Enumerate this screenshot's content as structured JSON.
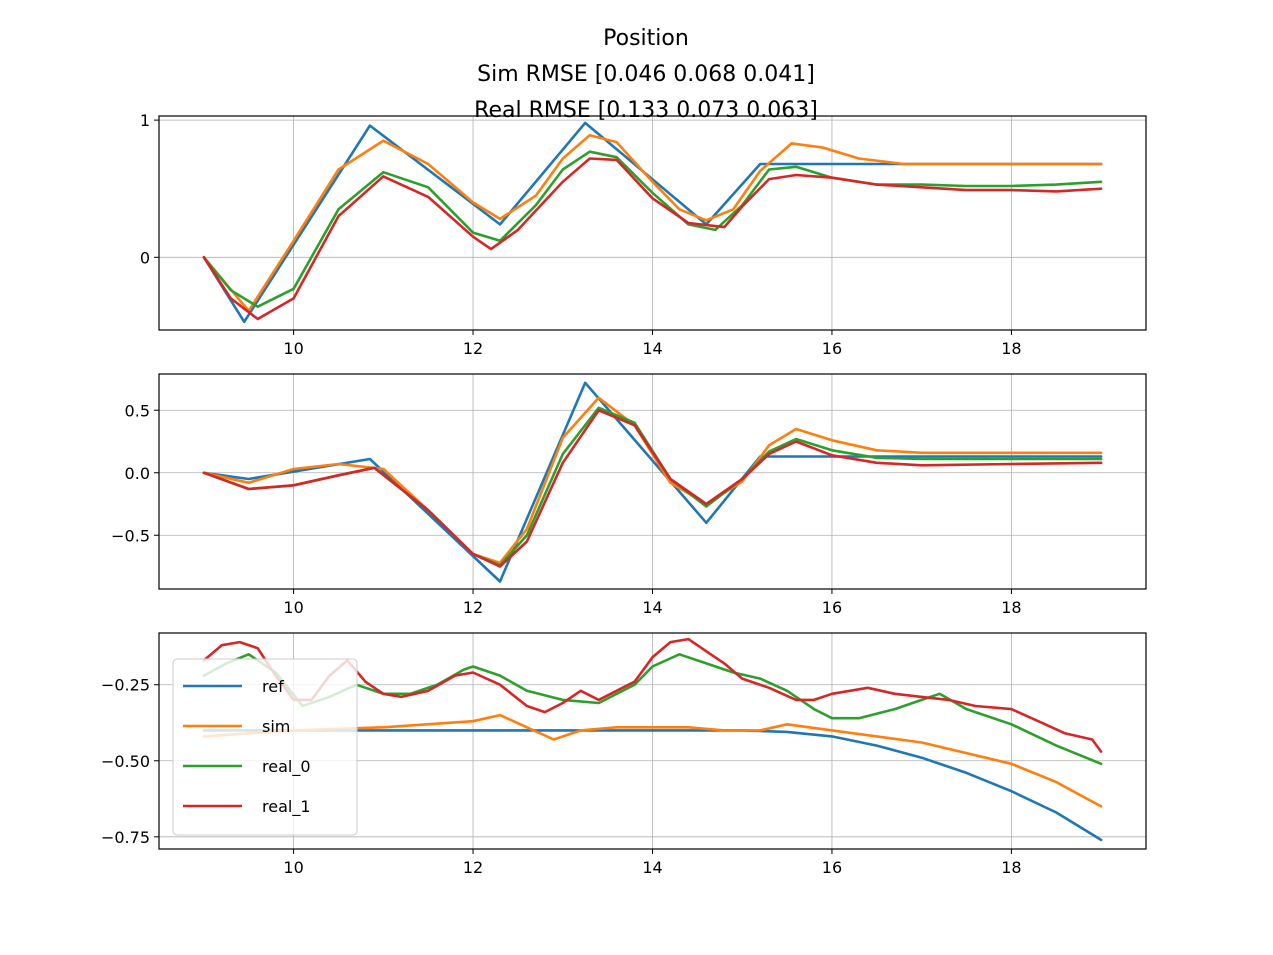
{
  "chart_data": {
    "type": "line",
    "title": [
      "Position",
      "Sim RMSE [0.046 0.068 0.041]",
      "Real RMSE [0.133 0.073 0.063]"
    ],
    "legend": {
      "location": "lower-left",
      "entries": [
        "ref",
        "sim",
        "real_0",
        "real_1"
      ]
    },
    "series_colors": {
      "ref": "#1f77b4",
      "sim": "#ff7f0e",
      "real_0": "#2ca02c",
      "real_1": "#d62728"
    },
    "grid": true,
    "subplots": [
      {
        "xlim": [
          8.5,
          19.5
        ],
        "ylim": [
          -0.53,
          1.03
        ],
        "xticks": [
          10,
          12,
          14,
          16,
          18
        ],
        "yticks": [
          0,
          1
        ],
        "ytick_labels": [
          "0",
          "1"
        ],
        "series": [
          {
            "name": "ref",
            "x": [
              9.0,
              9.45,
              10.85,
              12.3,
              13.25,
              14.6,
              15.2,
              19.0
            ],
            "y": [
              0.0,
              -0.47,
              0.96,
              0.24,
              0.98,
              0.24,
              0.68,
              0.68
            ]
          },
          {
            "name": "sim",
            "x": [
              9.0,
              9.5,
              10.0,
              10.5,
              11.0,
              11.5,
              12.0,
              12.3,
              12.7,
              13.0,
              13.3,
              13.6,
              14.0,
              14.3,
              14.6,
              14.9,
              15.2,
              15.55,
              15.9,
              16.3,
              16.8,
              17.5,
              19.0
            ],
            "y": [
              0.0,
              -0.39,
              0.12,
              0.64,
              0.85,
              0.68,
              0.4,
              0.28,
              0.45,
              0.72,
              0.89,
              0.84,
              0.55,
              0.35,
              0.27,
              0.35,
              0.63,
              0.83,
              0.8,
              0.72,
              0.68,
              0.68,
              0.68
            ]
          },
          {
            "name": "real_0",
            "x": [
              9.0,
              9.3,
              9.6,
              10.0,
              10.5,
              11.0,
              11.5,
              12.0,
              12.3,
              12.7,
              13.0,
              13.3,
              13.6,
              14.0,
              14.4,
              14.7,
              15.0,
              15.3,
              15.6,
              16.0,
              16.5,
              17.0,
              17.5,
              18.0,
              18.5,
              19.0
            ],
            "y": [
              0.0,
              -0.24,
              -0.36,
              -0.23,
              0.35,
              0.62,
              0.51,
              0.18,
              0.12,
              0.38,
              0.64,
              0.77,
              0.73,
              0.47,
              0.24,
              0.2,
              0.38,
              0.64,
              0.66,
              0.58,
              0.53,
              0.53,
              0.52,
              0.52,
              0.53,
              0.55
            ]
          },
          {
            "name": "real_1",
            "x": [
              9.0,
              9.3,
              9.6,
              10.0,
              10.5,
              11.0,
              11.5,
              12.0,
              12.2,
              12.5,
              13.0,
              13.3,
              13.6,
              14.0,
              14.4,
              14.8,
              15.0,
              15.3,
              15.6,
              16.0,
              16.5,
              17.0,
              17.5,
              18.0,
              18.5,
              19.0
            ],
            "y": [
              0.0,
              -0.3,
              -0.45,
              -0.3,
              0.3,
              0.59,
              0.44,
              0.15,
              0.06,
              0.2,
              0.55,
              0.72,
              0.71,
              0.43,
              0.25,
              0.22,
              0.37,
              0.57,
              0.6,
              0.58,
              0.53,
              0.51,
              0.49,
              0.49,
              0.48,
              0.5
            ]
          }
        ]
      },
      {
        "xlim": [
          8.5,
          19.5
        ],
        "ylim": [
          -0.93,
          0.79
        ],
        "xticks": [
          10,
          12,
          14,
          16,
          18
        ],
        "yticks": [
          0.5,
          0.0,
          -0.5
        ],
        "ytick_labels": [
          "0.5",
          "0.0",
          "−0.5"
        ],
        "series": [
          {
            "name": "ref",
            "x": [
              9.0,
              9.5,
              10.85,
              12.3,
              13.25,
              14.6,
              15.2,
              19.0
            ],
            "y": [
              0.0,
              -0.05,
              0.11,
              -0.87,
              0.72,
              -0.4,
              0.13,
              0.13
            ]
          },
          {
            "name": "sim",
            "x": [
              9.0,
              9.5,
              10.0,
              10.5,
              11.0,
              11.5,
              12.0,
              12.3,
              12.6,
              13.0,
              13.4,
              13.8,
              14.2,
              14.6,
              15.0,
              15.3,
              15.6,
              16.0,
              16.5,
              17.0,
              19.0
            ],
            "y": [
              0.0,
              -0.08,
              0.03,
              0.07,
              0.03,
              -0.3,
              -0.65,
              -0.72,
              -0.45,
              0.28,
              0.6,
              0.38,
              -0.08,
              -0.25,
              -0.07,
              0.22,
              0.35,
              0.26,
              0.18,
              0.16,
              0.16
            ]
          },
          {
            "name": "real_0",
            "x": [
              9.0,
              9.5,
              10.0,
              10.5,
              10.9,
              11.5,
              12.0,
              12.3,
              12.6,
              13.0,
              13.4,
              13.8,
              14.2,
              14.6,
              15.0,
              15.3,
              15.6,
              16.0,
              16.5,
              17.0,
              19.0
            ],
            "y": [
              0.0,
              -0.13,
              -0.1,
              -0.02,
              0.04,
              -0.3,
              -0.65,
              -0.74,
              -0.5,
              0.15,
              0.52,
              0.4,
              -0.05,
              -0.27,
              -0.05,
              0.17,
              0.27,
              0.18,
              0.12,
              0.11,
              0.11
            ]
          },
          {
            "name": "real_1",
            "x": [
              9.0,
              9.5,
              10.0,
              10.5,
              10.9,
              11.5,
              12.0,
              12.3,
              12.6,
              13.0,
              13.4,
              13.8,
              14.2,
              14.6,
              15.0,
              15.3,
              15.6,
              16.0,
              16.5,
              17.0,
              18.0,
              19.0
            ],
            "y": [
              0.0,
              -0.13,
              -0.1,
              -0.02,
              0.04,
              -0.3,
              -0.65,
              -0.75,
              -0.55,
              0.08,
              0.5,
              0.38,
              -0.05,
              -0.25,
              -0.05,
              0.15,
              0.25,
              0.14,
              0.08,
              0.06,
              0.07,
              0.08
            ]
          }
        ]
      },
      {
        "xlim": [
          8.5,
          19.5
        ],
        "ylim": [
          -0.79,
          -0.08
        ],
        "xticks": [
          10,
          12,
          14,
          16,
          18
        ],
        "yticks": [
          -0.25,
          -0.5,
          -0.75
        ],
        "ytick_labels": [
          "−0.25",
          "−0.50",
          "−0.75"
        ],
        "series": [
          {
            "name": "ref",
            "x": [
              9.0,
              12.0,
              14.0,
              15.0,
              15.5,
              16.0,
              16.5,
              17.0,
              17.5,
              18.0,
              18.5,
              19.0
            ],
            "y": [
              -0.4,
              -0.4,
              -0.4,
              -0.4,
              -0.405,
              -0.42,
              -0.45,
              -0.49,
              -0.54,
              -0.6,
              -0.67,
              -0.76
            ]
          },
          {
            "name": "sim",
            "x": [
              9.0,
              10.0,
              11.0,
              12.0,
              12.3,
              12.6,
              12.9,
              13.2,
              13.6,
              14.0,
              14.4,
              14.8,
              15.2,
              15.5,
              16.0,
              17.0,
              18.0,
              18.5,
              19.0
            ],
            "y": [
              -0.42,
              -0.4,
              -0.39,
              -0.37,
              -0.35,
              -0.39,
              -0.43,
              -0.4,
              -0.39,
              -0.39,
              -0.39,
              -0.4,
              -0.4,
              -0.38,
              -0.4,
              -0.44,
              -0.51,
              -0.57,
              -0.65
            ]
          },
          {
            "name": "real_0",
            "x": [
              9.0,
              9.25,
              9.5,
              9.8,
              10.1,
              10.4,
              10.7,
              11.0,
              11.3,
              11.6,
              11.9,
              12.0,
              12.3,
              12.6,
              13.0,
              13.4,
              13.8,
              14.0,
              14.3,
              14.6,
              14.9,
              15.2,
              15.5,
              15.8,
              16.0,
              16.3,
              16.7,
              17.0,
              17.2,
              17.5,
              18.0,
              18.5,
              19.0
            ],
            "y": [
              -0.22,
              -0.18,
              -0.15,
              -0.21,
              -0.32,
              -0.29,
              -0.25,
              -0.28,
              -0.28,
              -0.25,
              -0.2,
              -0.19,
              -0.22,
              -0.27,
              -0.3,
              -0.31,
              -0.25,
              -0.19,
              -0.15,
              -0.18,
              -0.21,
              -0.23,
              -0.27,
              -0.33,
              -0.36,
              -0.36,
              -0.33,
              -0.3,
              -0.28,
              -0.33,
              -0.38,
              -0.45,
              -0.51
            ]
          },
          {
            "name": "real_1",
            "x": [
              9.0,
              9.2,
              9.4,
              9.6,
              9.8,
              10.0,
              10.2,
              10.4,
              10.6,
              10.8,
              11.0,
              11.2,
              11.5,
              11.8,
              12.0,
              12.3,
              12.6,
              12.8,
              13.0,
              13.2,
              13.4,
              13.6,
              13.8,
              14.0,
              14.2,
              14.4,
              14.6,
              14.8,
              15.0,
              15.3,
              15.6,
              15.8,
              16.0,
              16.4,
              16.7,
              17.0,
              17.3,
              17.6,
              18.0,
              18.3,
              18.6,
              18.9,
              19.0
            ],
            "y": [
              -0.17,
              -0.12,
              -0.11,
              -0.13,
              -0.22,
              -0.3,
              -0.3,
              -0.22,
              -0.17,
              -0.24,
              -0.28,
              -0.29,
              -0.27,
              -0.22,
              -0.21,
              -0.25,
              -0.32,
              -0.34,
              -0.31,
              -0.27,
              -0.3,
              -0.27,
              -0.24,
              -0.16,
              -0.11,
              -0.1,
              -0.14,
              -0.18,
              -0.23,
              -0.26,
              -0.3,
              -0.3,
              -0.28,
              -0.26,
              -0.28,
              -0.29,
              -0.3,
              -0.32,
              -0.33,
              -0.37,
              -0.41,
              -0.43,
              -0.47
            ]
          }
        ]
      }
    ]
  }
}
